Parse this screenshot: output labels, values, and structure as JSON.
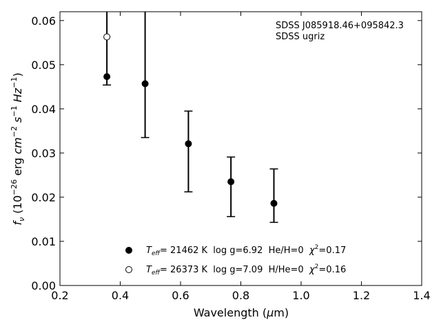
{
  "chart_data": {
    "type": "scatter",
    "xlabel": "Wavelength (μm)",
    "xlabel_main": "Wavelength (",
    "xlabel_mu": "μ",
    "xlabel_end": "m)",
    "ylabel_parts": {
      "f": "f",
      "nu": "ν",
      "open": " (10",
      "exp": "−26",
      "unit": " erg ",
      "cm": "cm",
      "cmexp": "−2",
      "s": " s",
      "sexp": "−1",
      "hz": " Hz",
      "hzexp": "−1",
      "close": ")"
    },
    "xlim": [
      0.2,
      1.4
    ],
    "ylim": [
      0.0,
      0.062
    ],
    "xticks": [
      0.2,
      0.4,
      0.6,
      0.8,
      1.0,
      1.2,
      1.4
    ],
    "xtick_labels": [
      "0.2",
      "0.4",
      "0.6",
      "0.8",
      "1.0",
      "1.2",
      "1.4"
    ],
    "yticks": [
      0.0,
      0.01,
      0.02,
      0.03,
      0.04,
      0.05,
      0.06
    ],
    "ytick_labels": [
      "0.00",
      "0.01",
      "0.02",
      "0.03",
      "0.04",
      "0.05",
      "0.06"
    ],
    "annotation": [
      "SDSS J085918.46+095842.3",
      "SDSS ugriz"
    ],
    "observed": {
      "x": [
        0.3557,
        0.4825,
        0.6261,
        0.7672,
        0.9097
      ],
      "y": [
        0.0473,
        0.0457,
        0.0321,
        0.0235,
        0.0186
      ],
      "err_low": [
        0.0454,
        0.0335,
        0.0212,
        0.0156,
        0.0143
      ],
      "err_high": [
        0.062,
        0.062,
        0.0395,
        0.0291,
        0.0264
      ],
      "err_cap_top": [
        false,
        false,
        true,
        true,
        true
      ]
    },
    "series": [
      {
        "name": "Teff= 21462 K  log g=6.92  He/H=0  χ2=0.17",
        "marker": "filled",
        "x": [
          0.3557,
          0.4825,
          0.6261,
          0.7672,
          0.9097
        ],
        "y": [
          0.0473,
          0.0457,
          0.0321,
          0.0235,
          0.0186
        ]
      },
      {
        "name": "Teff= 26373 K  log g=7.09  H/He=0  χ2=0.16",
        "marker": "open",
        "x": [
          0.3557
        ],
        "y": [
          0.0563
        ]
      }
    ],
    "legend": [
      {
        "T": "T",
        "eff": "eff",
        "rest": "= 21462 K  log g=6.92  He/H=0  ",
        "chi": "χ",
        "chiexp": "2",
        "val": "=0.17",
        "marker": "filled"
      },
      {
        "T": "T",
        "eff": "eff",
        "rest": "= 26373 K  log g=7.09  H/He=0  ",
        "chi": "χ",
        "chiexp": "2",
        "val": "=0.16",
        "marker": "open"
      }
    ],
    "legend_position": "lower-center",
    "grid": false,
    "colors": {
      "marker": "#000000",
      "axes": "#000000",
      "background": "#ffffff"
    }
  }
}
